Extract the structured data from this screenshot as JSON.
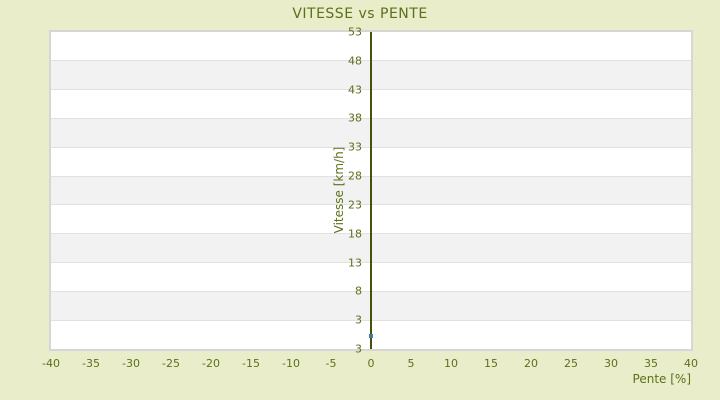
{
  "title": "VITESSE vs PENTE",
  "colors": {
    "background": "#e9edca",
    "text_olive": "#5c701c",
    "axis_line": "#44530c",
    "plot_border": "#d6d6d6",
    "band_gray": "#f2f2f2",
    "band_white": "#ffffff",
    "gridline": "#e1e1e1",
    "marker_blue": "#3b7ca7"
  },
  "chart_data": {
    "type": "scatter",
    "title": "VITESSE vs PENTE",
    "xlabel": "Pente [%]",
    "ylabel": "Vitesse [km/h]",
    "xlim": [
      -40,
      40
    ],
    "x_ticks": [
      -40,
      -35,
      -30,
      -25,
      -20,
      -15,
      -10,
      -5,
      0,
      5,
      10,
      15,
      20,
      25,
      30,
      35,
      40
    ],
    "y_ticks_top_to_bottom": [
      "53",
      "48",
      "43",
      "38",
      "33",
      "28",
      "23",
      "18",
      "13",
      "8",
      "3"
    ],
    "y_axis_bottom_label": "3",
    "y_units_per_band": 5,
    "grid": "horizontal-bands-alternating",
    "legend": "none",
    "series": [
      {
        "name": "Vitesse",
        "marker": "square",
        "color": "#3b7ca7",
        "points": [
          [
            0,
            0.2
          ]
        ]
      }
    ]
  }
}
